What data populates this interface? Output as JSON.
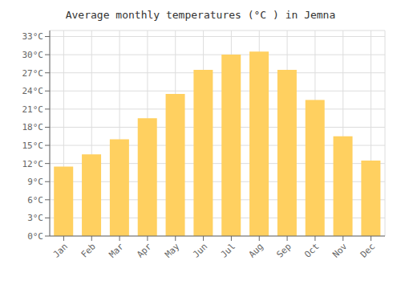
{
  "chart_data": {
    "type": "bar",
    "title": "Average monthly temperatures (°C ) in Jemna",
    "categories": [
      "Jan",
      "Feb",
      "Mar",
      "Apr",
      "May",
      "Jun",
      "Jul",
      "Aug",
      "Sep",
      "Oct",
      "Nov",
      "Dec"
    ],
    "values": [
      11.5,
      13.5,
      16.0,
      19.5,
      23.5,
      27.5,
      30.0,
      30.5,
      27.5,
      22.5,
      16.5,
      12.5
    ],
    "color": "#FFD060",
    "ylim": [
      0,
      34
    ],
    "yticks": [
      {
        "value": 0,
        "label": "0°C"
      },
      {
        "value": 3,
        "label": "3°C"
      },
      {
        "value": 6,
        "label": "6°C"
      },
      {
        "value": 9,
        "label": "9°C"
      },
      {
        "value": 12,
        "label": "12°C"
      },
      {
        "value": 15,
        "label": "15°C"
      },
      {
        "value": 18,
        "label": "18°C"
      },
      {
        "value": 21,
        "label": "21°C"
      },
      {
        "value": 24,
        "label": "24°C"
      },
      {
        "value": 27,
        "label": "27°C"
      },
      {
        "value": 30,
        "label": "30°C"
      },
      {
        "value": 33,
        "label": "33°C"
      }
    ],
    "grid": true
  }
}
